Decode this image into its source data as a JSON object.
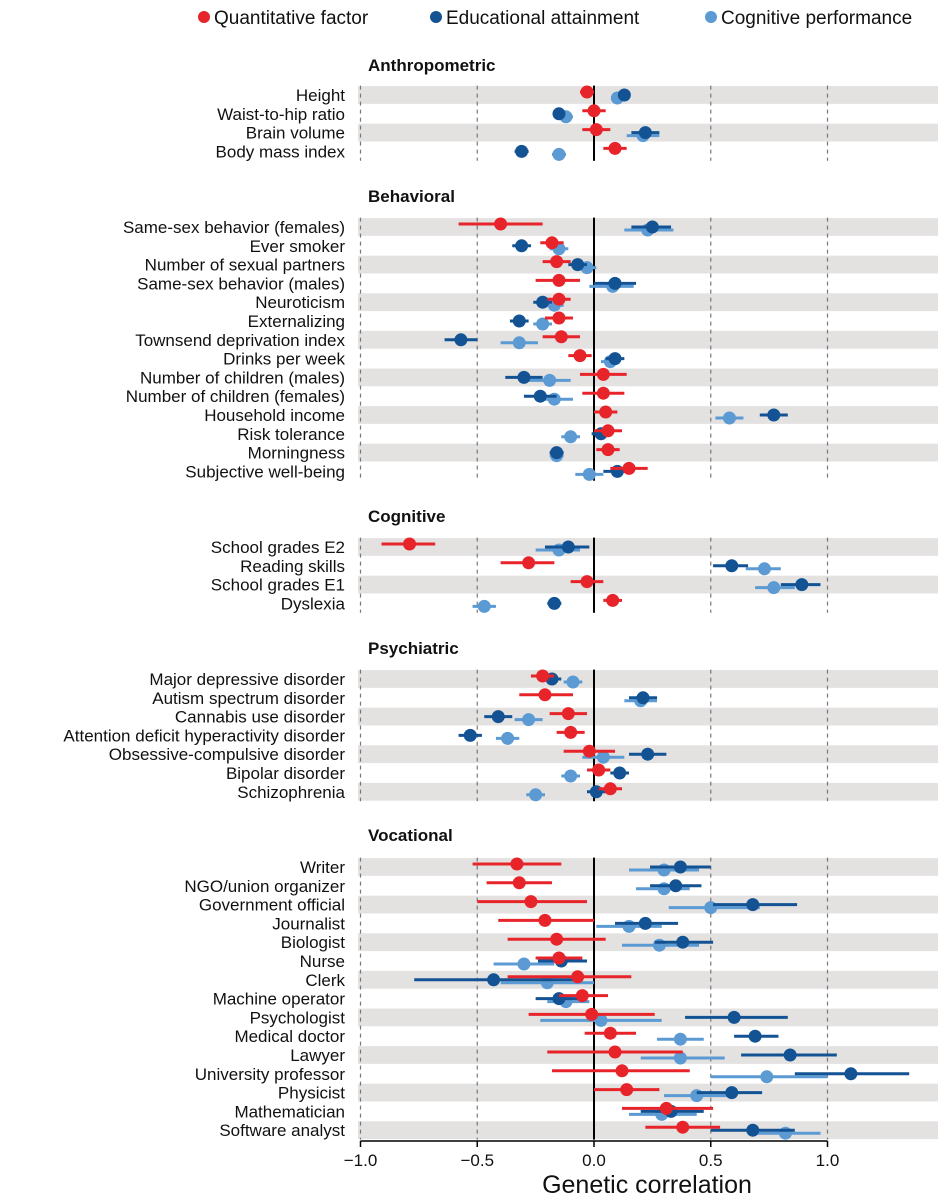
{
  "chart_data": {
    "type": "forest",
    "xlabel": "Genetic correlation",
    "xlim": [
      -1.0,
      1.45
    ],
    "xticks": [
      -1.0,
      -0.5,
      0.0,
      0.5,
      1.0
    ],
    "xtick_labels": [
      "−1.0",
      "−0.5",
      "0.0",
      "0.5",
      "1.0"
    ],
    "grid": "dashed vertical at ticks",
    "legend_position": "top",
    "series": [
      {
        "key": "q",
        "name": "Quantitative factor",
        "color": "#e8242b"
      },
      {
        "key": "e",
        "name": "Educational attainment",
        "color": "#135394"
      },
      {
        "key": "c",
        "name": "Cognitive performance",
        "color": "#5b9ad3"
      }
    ],
    "value_format": "[estimate, ci_low, ci_high]",
    "groups": [
      {
        "name": "Anthropometric",
        "rows": [
          {
            "label": "Height",
            "q": [
              -0.03,
              -0.06,
              0.0
            ],
            "e": [
              0.13,
              0.11,
              0.15
            ],
            "c": [
              0.1,
              0.08,
              0.12
            ]
          },
          {
            "label": "Waist-to-hip ratio",
            "q": [
              0.0,
              -0.05,
              0.05
            ],
            "e": [
              -0.15,
              -0.17,
              -0.13
            ],
            "c": [
              -0.12,
              -0.15,
              -0.09
            ]
          },
          {
            "label": "Brain volume",
            "q": [
              0.01,
              -0.05,
              0.07
            ],
            "e": [
              0.22,
              0.16,
              0.28
            ],
            "c": [
              0.21,
              0.14,
              0.28
            ]
          },
          {
            "label": "Body mass index",
            "q": [
              0.09,
              0.04,
              0.14
            ],
            "e": [
              -0.31,
              -0.34,
              -0.28
            ],
            "c": [
              -0.15,
              -0.18,
              -0.12
            ]
          }
        ]
      },
      {
        "name": "Behavioral",
        "rows": [
          {
            "label": "Same-sex behavior (females)",
            "q": [
              -0.4,
              -0.58,
              -0.22
            ],
            "e": [
              0.25,
              0.16,
              0.33
            ],
            "c": [
              0.23,
              0.13,
              0.34
            ]
          },
          {
            "label": "Ever smoker",
            "q": [
              -0.18,
              -0.23,
              -0.13
            ],
            "e": [
              -0.31,
              -0.35,
              -0.27
            ],
            "c": [
              -0.15,
              -0.19,
              -0.11
            ]
          },
          {
            "label": "Number of sexual partners",
            "q": [
              -0.16,
              -0.22,
              -0.1
            ],
            "e": [
              -0.07,
              -0.11,
              -0.03
            ],
            "c": [
              -0.03,
              -0.07,
              0.01
            ]
          },
          {
            "label": "Same-sex behavior (males)",
            "q": [
              -0.15,
              -0.25,
              -0.06
            ],
            "e": [
              0.09,
              0.0,
              0.18
            ],
            "c": [
              0.08,
              -0.02,
              0.17
            ]
          },
          {
            "label": "Neuroticism",
            "q": [
              -0.15,
              -0.2,
              -0.1
            ],
            "e": [
              -0.22,
              -0.26,
              -0.18
            ],
            "c": [
              -0.17,
              -0.21,
              -0.13
            ]
          },
          {
            "label": "Externalizing",
            "q": [
              -0.15,
              -0.21,
              -0.09
            ],
            "e": [
              -0.32,
              -0.36,
              -0.28
            ],
            "c": [
              -0.22,
              -0.26,
              -0.18
            ]
          },
          {
            "label": "Townsend deprivation index",
            "q": [
              -0.14,
              -0.22,
              -0.06
            ],
            "e": [
              -0.57,
              -0.64,
              -0.5
            ],
            "c": [
              -0.32,
              -0.4,
              -0.24
            ]
          },
          {
            "label": "Drinks per week",
            "q": [
              -0.06,
              -0.11,
              -0.01
            ],
            "e": [
              0.09,
              0.05,
              0.13
            ],
            "c": [
              0.07,
              0.03,
              0.11
            ]
          },
          {
            "label": "Number of children (males)",
            "q": [
              0.04,
              -0.06,
              0.14
            ],
            "e": [
              -0.3,
              -0.38,
              -0.22
            ],
            "c": [
              -0.19,
              -0.28,
              -0.1
            ]
          },
          {
            "label": "Number of children (females)",
            "q": [
              0.04,
              -0.05,
              0.13
            ],
            "e": [
              -0.23,
              -0.3,
              -0.16
            ],
            "c": [
              -0.17,
              -0.25,
              -0.09
            ]
          },
          {
            "label": "Household income",
            "q": [
              0.05,
              0.0,
              0.1
            ],
            "e": [
              0.77,
              0.71,
              0.83
            ],
            "c": [
              0.58,
              0.52,
              0.64
            ]
          },
          {
            "label": "Risk tolerance",
            "q": [
              0.06,
              0.0,
              0.12
            ],
            "e": [
              0.03,
              -0.01,
              0.07
            ],
            "c": [
              -0.1,
              -0.14,
              -0.06
            ]
          },
          {
            "label": "Morningness",
            "q": [
              0.06,
              0.01,
              0.11
            ],
            "e": [
              -0.16,
              -0.19,
              -0.13
            ],
            "c": [
              -0.16,
              -0.19,
              -0.13
            ]
          },
          {
            "label": "Subjective well-being",
            "q": [
              0.15,
              0.07,
              0.23
            ],
            "e": [
              0.1,
              0.04,
              0.16
            ],
            "c": [
              -0.02,
              -0.08,
              0.04
            ]
          }
        ]
      },
      {
        "name": "Cognitive",
        "rows": [
          {
            "label": "School grades E2",
            "q": [
              -0.79,
              -0.91,
              -0.68
            ],
            "e": [
              -0.11,
              -0.21,
              -0.02
            ],
            "c": [
              -0.15,
              -0.25,
              -0.06
            ]
          },
          {
            "label": "Reading skills",
            "q": [
              -0.28,
              -0.4,
              -0.17
            ],
            "e": [
              0.59,
              0.51,
              0.66
            ],
            "c": [
              0.73,
              0.65,
              0.8
            ]
          },
          {
            "label": "School grades E1",
            "q": [
              -0.03,
              -0.1,
              0.04
            ],
            "e": [
              0.89,
              0.8,
              0.97
            ],
            "c": [
              0.77,
              0.69,
              0.86
            ]
          },
          {
            "label": "Dyslexia",
            "q": [
              0.08,
              0.04,
              0.12
            ],
            "e": [
              -0.17,
              -0.2,
              -0.14
            ],
            "c": [
              -0.47,
              -0.52,
              -0.42
            ]
          }
        ]
      },
      {
        "name": "Psychiatric",
        "rows": [
          {
            "label": "Major depressive disorder",
            "q": [
              -0.22,
              -0.27,
              -0.17
            ],
            "e": [
              -0.18,
              -0.22,
              -0.14
            ],
            "c": [
              -0.09,
              -0.13,
              -0.05
            ]
          },
          {
            "label": "Autism spectrum disorder",
            "q": [
              -0.21,
              -0.32,
              -0.09
            ],
            "e": [
              0.21,
              0.15,
              0.27
            ],
            "c": [
              0.2,
              0.13,
              0.27
            ]
          },
          {
            "label": "Cannabis use disorder",
            "q": [
              -0.11,
              -0.19,
              -0.03
            ],
            "e": [
              -0.41,
              -0.47,
              -0.35
            ],
            "c": [
              -0.28,
              -0.34,
              -0.22
            ]
          },
          {
            "label": "Attention deficit hyperactivity disorder",
            "q": [
              -0.1,
              -0.16,
              -0.04
            ],
            "e": [
              -0.53,
              -0.58,
              -0.48
            ],
            "c": [
              -0.37,
              -0.42,
              -0.32
            ]
          },
          {
            "label": "Obsessive-compulsive disorder",
            "q": [
              -0.02,
              -0.13,
              0.09
            ],
            "e": [
              0.23,
              0.15,
              0.31
            ],
            "c": [
              0.04,
              -0.05,
              0.13
            ]
          },
          {
            "label": "Bipolar disorder",
            "q": [
              0.02,
              -0.03,
              0.07
            ],
            "e": [
              0.11,
              0.07,
              0.15
            ],
            "c": [
              -0.1,
              -0.14,
              -0.06
            ]
          },
          {
            "label": "Schizophrenia",
            "q": [
              0.07,
              0.02,
              0.12
            ],
            "e": [
              0.01,
              -0.03,
              0.05
            ],
            "c": [
              -0.25,
              -0.29,
              -0.21
            ]
          }
        ]
      },
      {
        "name": "Vocational",
        "rows": [
          {
            "label": "Writer",
            "q": [
              -0.33,
              -0.52,
              -0.14
            ],
            "e": [
              0.37,
              0.24,
              0.5
            ],
            "c": [
              0.3,
              0.15,
              0.45
            ]
          },
          {
            "label": "NGO/union organizer",
            "q": [
              -0.32,
              -0.46,
              -0.18
            ],
            "e": [
              0.35,
              0.24,
              0.46
            ],
            "c": [
              0.3,
              0.18,
              0.41
            ]
          },
          {
            "label": "Government official",
            "q": [
              -0.27,
              -0.5,
              -0.03
            ],
            "e": [
              0.68,
              0.51,
              0.87
            ],
            "c": [
              0.5,
              0.32,
              0.71
            ]
          },
          {
            "label": "Journalist",
            "q": [
              -0.21,
              -0.41,
              0.0
            ],
            "e": [
              0.22,
              0.09,
              0.36
            ],
            "c": [
              0.15,
              0.01,
              0.29
            ]
          },
          {
            "label": "Biologist",
            "q": [
              -0.16,
              -0.37,
              0.05
            ],
            "e": [
              0.38,
              0.26,
              0.51
            ],
            "c": [
              0.28,
              0.12,
              0.45
            ]
          },
          {
            "label": "Nurse",
            "q": [
              -0.15,
              -0.25,
              -0.05
            ],
            "e": [
              -0.14,
              -0.24,
              -0.03
            ],
            "c": [
              -0.3,
              -0.43,
              -0.17
            ]
          },
          {
            "label": "Clerk",
            "q": [
              -0.07,
              -0.37,
              0.16
            ],
            "e": [
              -0.43,
              -0.77,
              -0.09
            ],
            "c": [
              -0.2,
              -0.4,
              0.0
            ]
          },
          {
            "label": "Machine operator",
            "q": [
              -0.05,
              -0.15,
              0.06
            ],
            "e": [
              -0.15,
              -0.25,
              -0.05
            ],
            "c": [
              -0.12,
              -0.2,
              -0.02
            ]
          },
          {
            "label": "Psychologist",
            "q": [
              -0.01,
              -0.28,
              0.26
            ],
            "e": [
              0.6,
              0.39,
              0.83
            ],
            "c": [
              0.03,
              -0.23,
              0.29
            ]
          },
          {
            "label": "Medical doctor",
            "q": [
              0.07,
              -0.04,
              0.18
            ],
            "e": [
              0.69,
              0.6,
              0.79
            ],
            "c": [
              0.37,
              0.27,
              0.47
            ]
          },
          {
            "label": "Lawyer",
            "q": [
              0.09,
              -0.2,
              0.38
            ],
            "e": [
              0.84,
              0.63,
              1.04
            ],
            "c": [
              0.37,
              0.2,
              0.56
            ]
          },
          {
            "label": "University professor",
            "q": [
              0.12,
              -0.18,
              0.41
            ],
            "e": [
              1.1,
              0.86,
              1.35
            ],
            "c": [
              0.74,
              0.5,
              1.0
            ]
          },
          {
            "label": "Physicist",
            "q": [
              0.14,
              0.0,
              0.28
            ],
            "e": [
              0.59,
              0.44,
              0.72
            ],
            "c": [
              0.44,
              0.3,
              0.58
            ]
          },
          {
            "label": "Mathematician",
            "q": [
              0.31,
              0.12,
              0.51
            ],
            "e": [
              0.33,
              0.2,
              0.47
            ],
            "c": [
              0.29,
              0.15,
              0.44
            ]
          },
          {
            "label": "Software analyst",
            "q": [
              0.38,
              0.22,
              0.54
            ],
            "e": [
              0.68,
              0.5,
              0.86
            ],
            "c": [
              0.82,
              0.66,
              0.97
            ]
          }
        ]
      }
    ]
  }
}
